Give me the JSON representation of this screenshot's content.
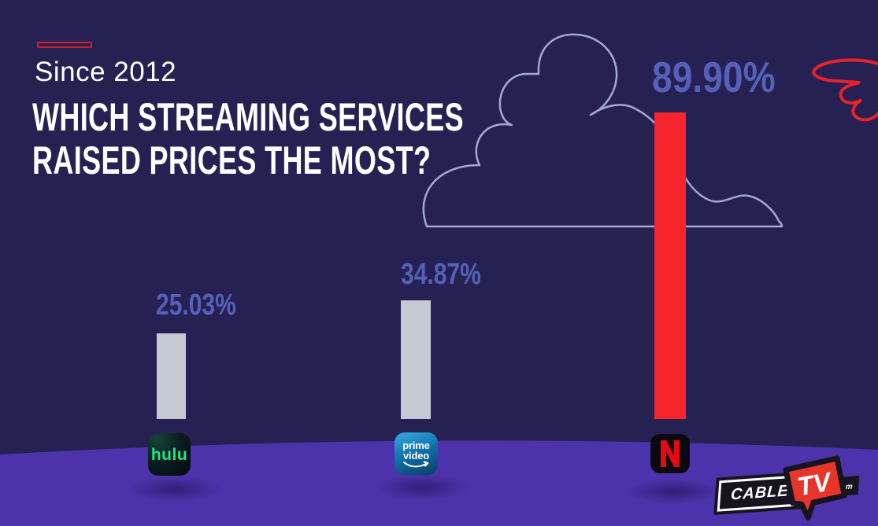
{
  "header": {
    "eyebrow": "Since 2012",
    "title_line1": "WHICH STREAMING SERVICES",
    "title_line2": "RAISED PRICES THE MOST?"
  },
  "chart_data": {
    "type": "bar",
    "title": "Which streaming services raised prices the most?",
    "subtitle": "Since 2012",
    "categories": [
      "Hulu",
      "Prime Video",
      "Netflix"
    ],
    "values": [
      25.03,
      34.87,
      89.9
    ],
    "labels": [
      "25.03%",
      "34.87%",
      "89.90%"
    ],
    "ylim": [
      0,
      100
    ],
    "bar_colors": [
      "#c5c9d4",
      "#c5c9d4",
      "#f5242d"
    ],
    "label_color": "#5560ba",
    "legend": "none",
    "grid": "off"
  },
  "logos": {
    "hulu_text": "hulu",
    "prime_text_line1": "prime",
    "prime_text_line2": "video",
    "netflix_letter": "N",
    "cabletv": {
      "cable": "CABLE",
      "tv": "TV",
      "com": ".com"
    }
  },
  "colors": {
    "background": "#262152",
    "ground": "#4d33ab",
    "accent_red": "#cf1f2c",
    "netflix_red": "#f5242d",
    "bar_gray": "#c5c9d4",
    "cloud_outline": "#a3a9d6",
    "scribble_red": "#e8222d",
    "hulu_green": "#1ce783",
    "heading_text": "#ffffff"
  }
}
